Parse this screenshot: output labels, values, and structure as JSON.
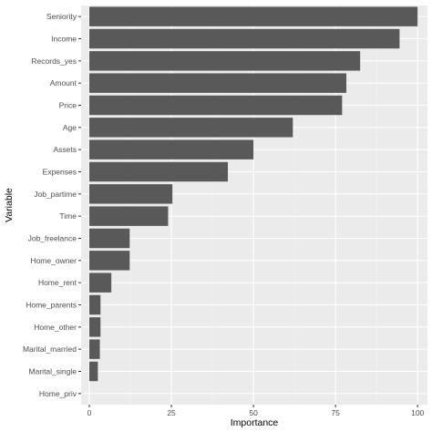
{
  "chart_data": {
    "type": "bar",
    "orientation": "horizontal",
    "categories": [
      "Seniority",
      "Income",
      "Records_yes",
      "Amount",
      "Price",
      "Age",
      "Assets",
      "Expenses",
      "Job_partime",
      "Time",
      "Job_freelance",
      "Home_owner",
      "Home_rent",
      "Home_parents",
      "Home_other",
      "Marital_married",
      "Marital_single",
      "Home_priv"
    ],
    "values": [
      100,
      94.5,
      82.5,
      78.3,
      77,
      62,
      50,
      42.2,
      25.3,
      24,
      12.3,
      12.3,
      6.7,
      3.4,
      3.4,
      3.2,
      2.6,
      0
    ],
    "xlabel": "Importance",
    "ylabel": "Variable",
    "xlim": [
      -2.5,
      103
    ],
    "xticks": [
      0,
      25,
      50,
      75,
      100
    ],
    "grid": true,
    "colors": {
      "bar": "#595959",
      "panel": "#ebebeb",
      "grid_major": "#ffffff",
      "grid_minor": "#f4f4f4"
    }
  }
}
